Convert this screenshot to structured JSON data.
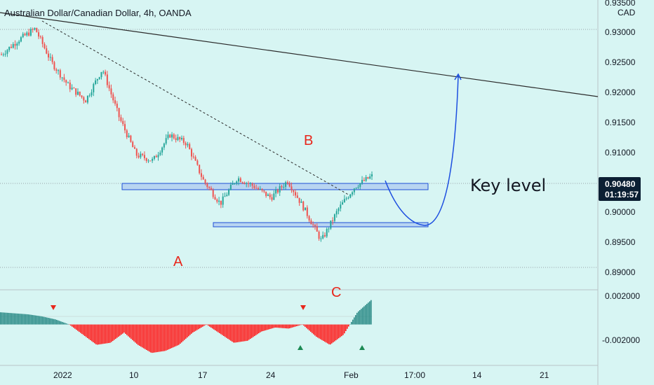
{
  "header": {
    "title": "Australian Dollar/Canadian Dollar, 4h, OANDA"
  },
  "price_axis": {
    "currency": "CAD",
    "labels": [
      "0.93500",
      "0.93000",
      "0.92500",
      "0.92000",
      "0.91500",
      "0.91000",
      "0.90500",
      "0.90000",
      "0.89500",
      "0.89000"
    ],
    "current_price": "0.90480",
    "countdown": "01:19:57"
  },
  "indicator_axis": {
    "labels": [
      "0.002000",
      "-0.002000"
    ]
  },
  "time_axis": {
    "labels": [
      "2022",
      "10",
      "17",
      "24",
      "Feb",
      "17:00",
      "14",
      "21"
    ]
  },
  "annotations": {
    "a": "A",
    "b": "B",
    "c": "C",
    "key_level": "Key level"
  },
  "colors": {
    "background": "#d7f5f3",
    "bull": "#26a69a",
    "bear": "#ef5350",
    "zone_fill": "#b3cff0",
    "zone_stroke": "#1e4fd6",
    "projection": "#1d4fe0",
    "trendline": "#2a2a2a",
    "hist_up": "#2a8a86",
    "hist_down": "#ff1a1a",
    "price_tag": "#0b1f33"
  },
  "chart_data": {
    "type": "candlestick",
    "title": "Australian Dollar/Canadian Dollar, 4h, OANDA",
    "y_unit": "CAD",
    "ylim": [
      0.8879,
      0.9355
    ],
    "price_path_approx": [
      [
        "2021-12-27",
        0.926
      ],
      [
        "2021-12-28",
        0.9285
      ],
      [
        "2021-12-30",
        0.9305
      ],
      [
        "2021-12-31",
        0.9245
      ],
      [
        "2022-01-03",
        0.9205
      ],
      [
        "2022-01-05",
        0.918
      ],
      [
        "2022-01-06",
        0.9235
      ],
      [
        "2022-01-07",
        0.915
      ],
      [
        "2022-01-10",
        0.9085
      ],
      [
        "2022-01-12",
        0.9075
      ],
      [
        "2022-01-13",
        0.912
      ],
      [
        "2022-01-14",
        0.9105
      ],
      [
        "2022-01-17",
        0.904
      ],
      [
        "2022-01-18",
        0.9
      ],
      [
        "2022-01-20",
        0.9045
      ],
      [
        "2022-01-21",
        0.903
      ],
      [
        "2022-01-24",
        0.901
      ],
      [
        "2022-01-26",
        0.904
      ],
      [
        "2022-01-27",
        0.899
      ],
      [
        "2022-01-28",
        0.8935
      ],
      [
        "2022-01-31",
        0.899
      ],
      [
        "2022-02-01",
        0.903
      ],
      [
        "2022-02-02",
        0.9048
      ]
    ],
    "trendlines": [
      {
        "style": "solid",
        "from": [
          "2021-12-23",
          0.9325
        ],
        "to": [
          "2022-02-22",
          0.9195
        ]
      },
      {
        "style": "dashed",
        "from": [
          "2021-12-30",
          0.931
        ],
        "to": [
          "2022-02-01",
          0.9025
        ]
      }
    ],
    "zones": [
      {
        "from": "2022-01-10",
        "to": "2022-02-05",
        "low": 0.9038,
        "high": 0.905
      },
      {
        "from": "2022-01-19",
        "to": "2022-02-05",
        "low": 0.8978,
        "high": 0.8985
      }
    ],
    "projection": [
      [
        "2022-02-02",
        0.9045
      ],
      [
        "2022-02-04",
        0.8985
      ],
      [
        "2022-02-05",
        0.8985
      ],
      [
        "2022-02-07",
        0.91
      ],
      [
        "2022-02-08",
        0.923
      ]
    ],
    "indicator": {
      "type": "histogram",
      "ylim": [
        -0.0032,
        0.003
      ],
      "values_approx": [
        0.0012,
        0.0011,
        0.001,
        0.0008,
        0.0005,
        0,
        -0.001,
        -0.002,
        -0.0018,
        -0.0008,
        -0.002,
        -0.0028,
        -0.0026,
        -0.002,
        -0.0008,
        0,
        -0.0009,
        -0.0018,
        -0.0016,
        -0.0007,
        -0.0003,
        -0.0004,
        0,
        -0.0012,
        -0.002,
        -0.001,
        0.0012,
        0.0024
      ],
      "signals": [
        {
          "type": "down",
          "date": "2021-12-30"
        },
        {
          "type": "down",
          "date": "2022-01-26"
        },
        {
          "type": "up",
          "date": "2022-01-26"
        },
        {
          "type": "up",
          "date": "2022-02-01"
        }
      ]
    }
  }
}
